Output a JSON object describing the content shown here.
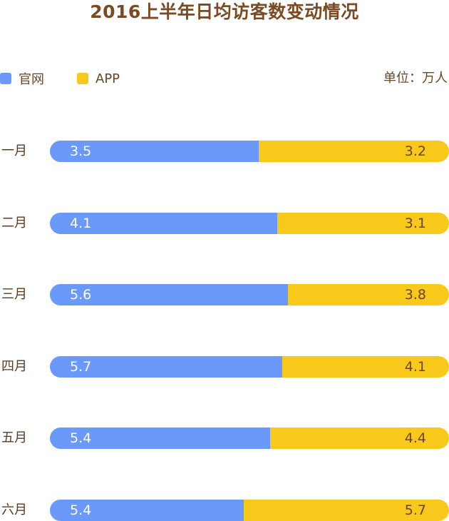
{
  "colors": {
    "官网": "#6a98fb",
    "APP": "#f8c81a"
  },
  "chart_data": {
    "type": "bar",
    "orientation": "horizontal",
    "stacked": "percent",
    "title": "2016上半年日均访客数变动情况",
    "unit": "单位：万人",
    "legend_position": "top-left",
    "categories": [
      "一月",
      "二月",
      "三月",
      "四月",
      "五月",
      "六月"
    ],
    "series": [
      {
        "name": "官网",
        "values": [
          3.5,
          4.1,
          5.6,
          5.7,
          5.4,
          5.4
        ]
      },
      {
        "name": "APP",
        "values": [
          3.2,
          3.1,
          3.8,
          4.1,
          4.4,
          5.7
        ]
      }
    ]
  }
}
